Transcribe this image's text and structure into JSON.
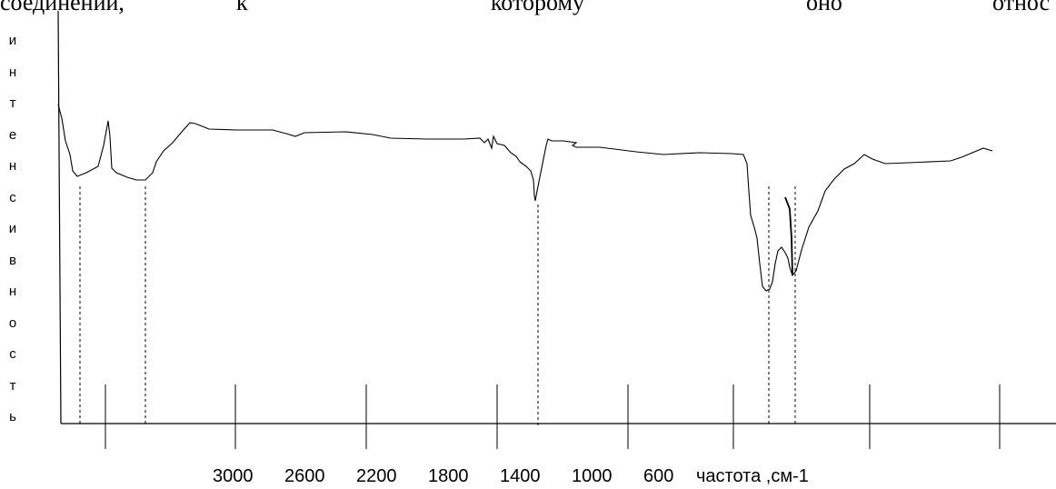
{
  "document_fragment": {
    "words": [
      "соединений,",
      "к",
      "которому",
      "оно",
      "относ"
    ]
  },
  "chart_data": {
    "type": "line",
    "y_axis_label_letters": [
      "и",
      "н",
      "т",
      "е",
      "н",
      "с",
      "и",
      "в",
      "н",
      "о",
      "с",
      "т",
      "ь"
    ],
    "x_tick_labels": [
      "3000",
      "2600",
      "2200",
      "1800",
      "1400",
      "1000",
      "600"
    ],
    "x_axis_label": "частота ,см-1",
    "grid": false,
    "legend": "none"
  }
}
